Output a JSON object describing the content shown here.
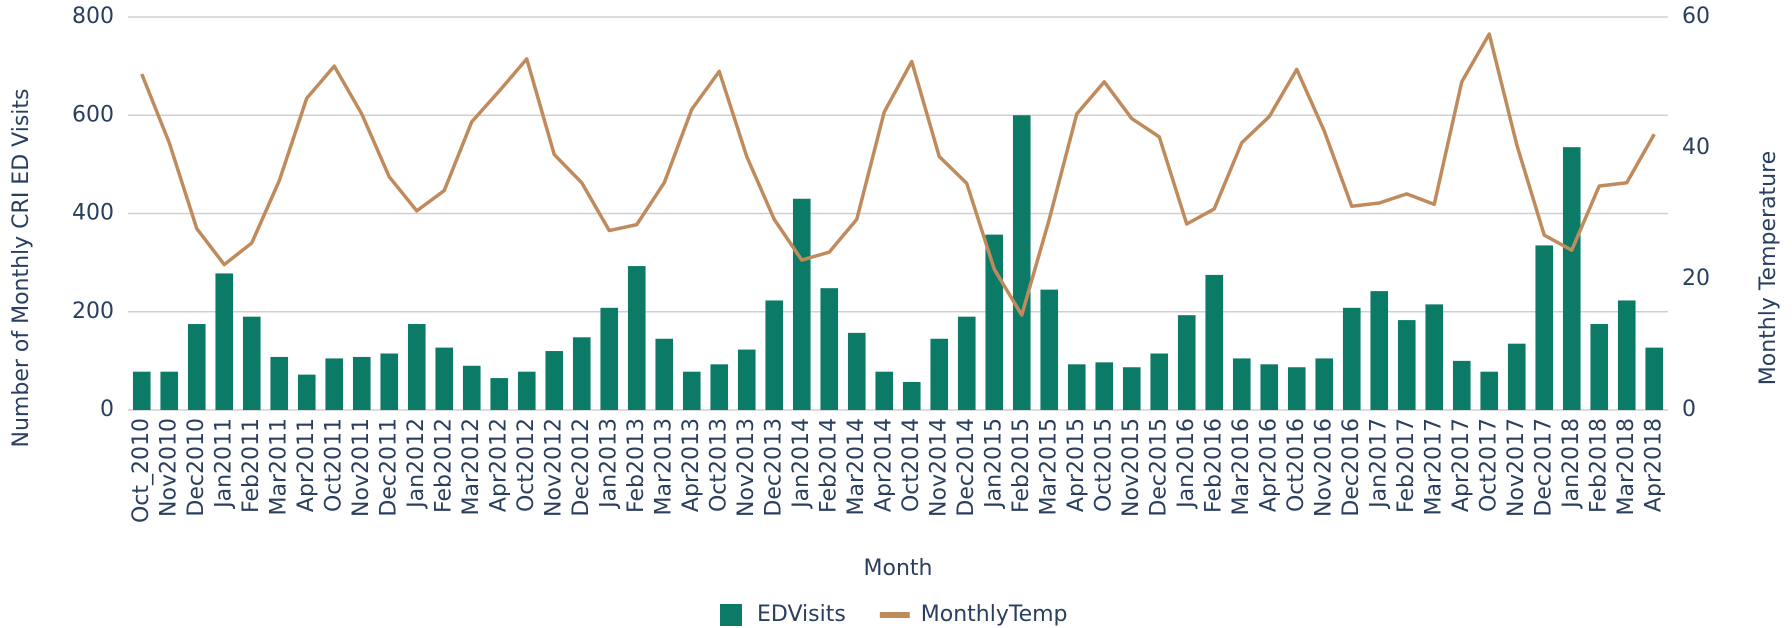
{
  "chart_data": {
    "type": "bar",
    "categories": [
      "Oct_2010",
      "Nov2010",
      "Dec2010",
      "Jan2011",
      "Feb2011",
      "Mar2011",
      "Apr2011",
      "Oct2011",
      "Nov2011",
      "Dec2011",
      "Jan2012",
      "Feb2012",
      "Mar2012",
      "Apr2012",
      "Oct2012",
      "Nov2012",
      "Dec2012",
      "Jan2013",
      "Feb2013",
      "Mar2013",
      "Apr2013",
      "Oct2013",
      "Nov2013",
      "Dec2013",
      "Jan2014",
      "Feb2014",
      "Mar2014",
      "Apr2014",
      "Oct2014",
      "Nov2014",
      "Dec2014",
      "Jan2015",
      "Feb2015",
      "Mar2015",
      "Apr2015",
      "Oct2015",
      "Nov2015",
      "Dec2015",
      "Jan2016",
      "Feb2016",
      "Mar2016",
      "Apr2016",
      "Oct2016",
      "Nov2016",
      "Dec2016",
      "Jan2017",
      "Feb2017",
      "Mar2017",
      "Apr2017",
      "Oct2017",
      "Nov2017",
      "Dec2017",
      "Jan2018",
      "Feb2018",
      "Mar2018",
      "Apr2018"
    ],
    "series": [
      {
        "name": "EDVisits",
        "type": "bar",
        "color": "#0b7a66",
        "values": [
          78,
          78,
          175,
          278,
          190,
          108,
          72,
          105,
          108,
          115,
          175,
          127,
          90,
          65,
          78,
          120,
          148,
          208,
          293,
          145,
          78,
          93,
          123,
          223,
          430,
          248,
          157,
          78,
          57,
          145,
          190,
          357,
          600,
          245,
          93,
          97,
          87,
          115,
          193,
          275,
          105,
          93,
          87,
          105,
          208,
          242,
          183,
          215,
          100,
          78,
          135,
          335,
          535,
          175,
          223,
          127
        ]
      },
      {
        "name": "MonthlyTemp",
        "type": "line",
        "axis": "y2",
        "color": "#c08b5c",
        "values": [
          51.3,
          40.8,
          27.7,
          22.2,
          25.5,
          35,
          47.6,
          52.5,
          45.2,
          35.6,
          30.4,
          33.5,
          44,
          48.7,
          53.6,
          39,
          34.7,
          27.4,
          28.3,
          34.7,
          45.9,
          51.7,
          38.7,
          29.1,
          22.9,
          24.1,
          29.1,
          45.5,
          53.2,
          38.7,
          34.6,
          21.5,
          14.5,
          29.1,
          45.2,
          50.1,
          44.5,
          41.7,
          28.4,
          30.7,
          40.8,
          44.8,
          52,
          42.6,
          31.1,
          31.6,
          33,
          31.4,
          50.1,
          57.4,
          40.5,
          26.7,
          24.4,
          34.2,
          34.7,
          42.1
        ]
      }
    ],
    "xlabel": "Month",
    "ylabel": "Number of Monthly CRI ED Visits",
    "y2label": "Monthly Temperature",
    "ylim": [
      0,
      800
    ],
    "yticks": [
      0,
      200,
      400,
      600,
      800
    ],
    "y2lim": [
      0,
      60
    ],
    "y2ticks": [
      0,
      20,
      40,
      60
    ],
    "grid": true,
    "legend": "bottom"
  }
}
